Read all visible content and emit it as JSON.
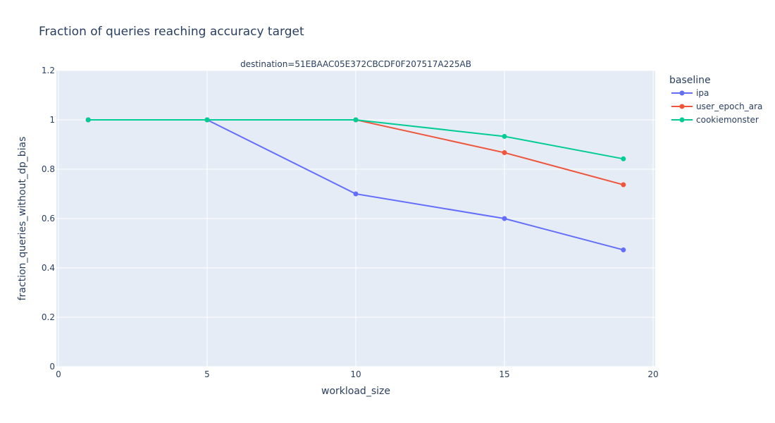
{
  "chart_data": {
    "type": "line",
    "title": "Fraction of queries reaching accuracy target",
    "subtitle": "destination=51EBAAC05E372CBCDF0F207517A225AB",
    "xlabel": "workload_size",
    "ylabel": "fraction_queries_without_dp_bias",
    "xlim": [
      0,
      20
    ],
    "ylim": [
      0,
      1.2
    ],
    "xticks": [
      "0",
      "5",
      "10",
      "15",
      "20"
    ],
    "yticks": [
      "0",
      "0.2",
      "0.4",
      "0.6",
      "0.8",
      "1",
      "1.2"
    ],
    "grid": true,
    "legend_title": "baseline",
    "legend_position": "top-right",
    "series": [
      {
        "name": "ipa",
        "color": "#636efa",
        "x": [
          1,
          5,
          10,
          15,
          19
        ],
        "values": [
          1,
          1,
          0.7,
          0.6,
          0.473
        ]
      },
      {
        "name": "user_epoch_ara",
        "color": "#ef553b",
        "x": [
          1,
          5,
          10,
          15,
          19
        ],
        "values": [
          1,
          1,
          1,
          0.867,
          0.737
        ]
      },
      {
        "name": "cookiemonster",
        "color": "#00cc96",
        "x": [
          1,
          5,
          10,
          15,
          19
        ],
        "values": [
          1,
          1,
          1,
          0.933,
          0.842
        ]
      }
    ]
  }
}
